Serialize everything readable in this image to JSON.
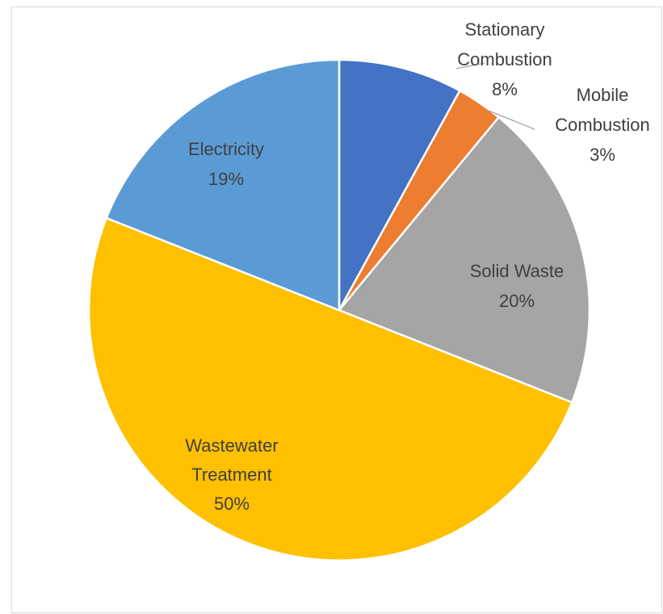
{
  "chart_data": {
    "type": "pie",
    "title": "",
    "slices": [
      {
        "label": "Stationary Combustion",
        "value": 8,
        "percent_label": "8%",
        "color": "#4472C4"
      },
      {
        "label": "Mobile Combustion",
        "value": 3,
        "percent_label": "3%",
        "color": "#ED7D31"
      },
      {
        "label": "Solid Waste",
        "value": 20,
        "percent_label": "20%",
        "color": "#A5A5A5"
      },
      {
        "label": "Wastewater Treatment",
        "value": 50,
        "percent_label": "50%",
        "color": "#FFC000"
      },
      {
        "label": "Electricity",
        "value": 19,
        "percent_label": "19%",
        "color": "#5B9BD5"
      }
    ],
    "start_angle": "12 o'clock",
    "direction": "clockwise",
    "legend": "none",
    "slice_border_color": "#FFFFFF",
    "label_color": "#404040"
  }
}
